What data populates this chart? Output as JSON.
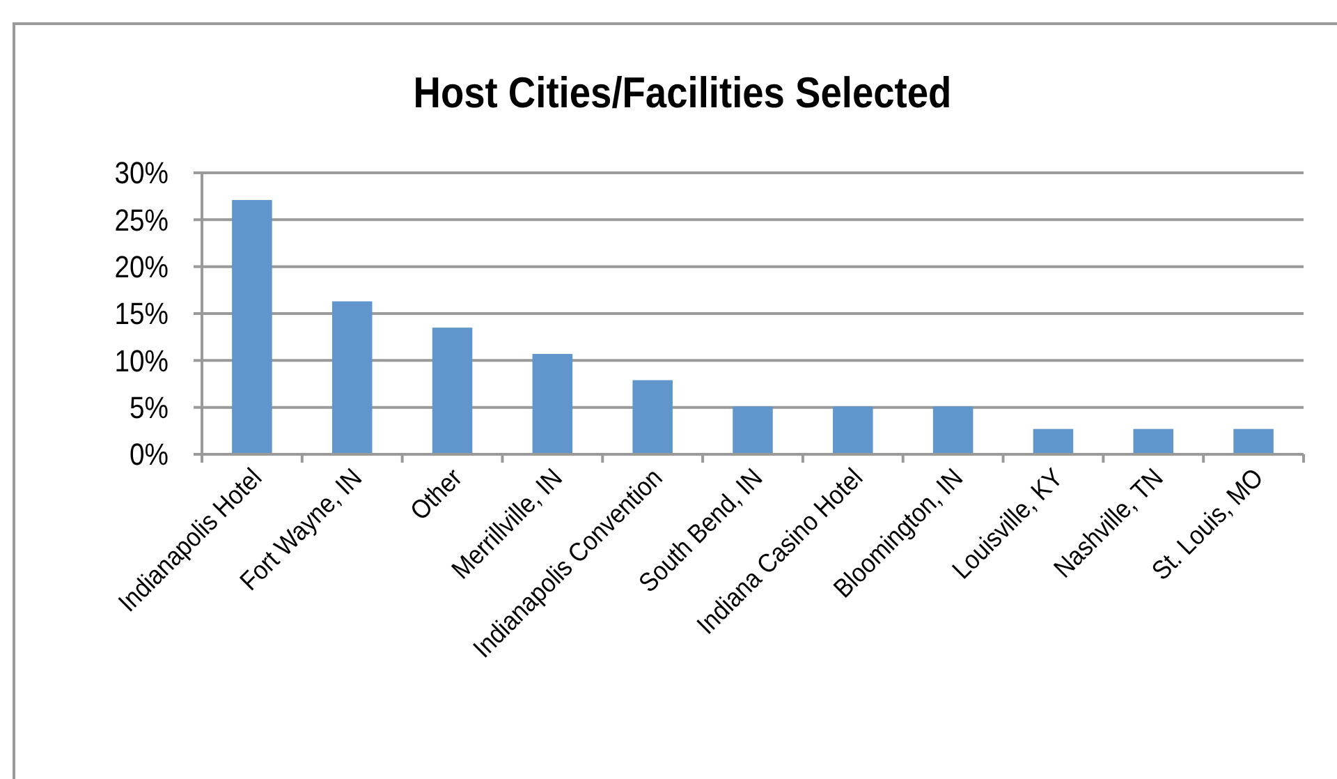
{
  "chart_data": {
    "type": "bar",
    "title": "Host Cities/Facilities Selected",
    "categories": [
      "Indianapolis Hotel",
      "Fort Wayne, IN",
      "Other",
      "Merrillville, IN",
      "Indianapolis Convention",
      "South Bend, IN",
      "Indiana Casino Hotel",
      "Bloomington, IN",
      "Louisville, KY",
      "Nashville, TN",
      "St. Louis, MO"
    ],
    "values": [
      27.1,
      16.3,
      13.5,
      10.7,
      7.9,
      5.1,
      5.1,
      5.1,
      2.7,
      2.7,
      2.7
    ],
    "color": "#6096cb",
    "ylim": [
      0,
      30
    ],
    "yticks": [
      {
        "value": 0,
        "label": "0%"
      },
      {
        "value": 5,
        "label": "5%"
      },
      {
        "value": 10,
        "label": "10%"
      },
      {
        "value": 15,
        "label": "15%"
      },
      {
        "value": 20,
        "label": "20%"
      },
      {
        "value": 25,
        "label": "25%"
      },
      {
        "value": 30,
        "label": "30%"
      }
    ],
    "grid": "y"
  }
}
